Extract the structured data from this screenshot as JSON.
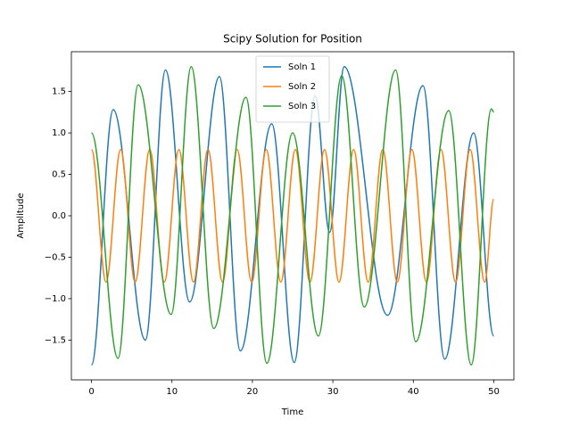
{
  "chart_data": {
    "type": "line",
    "title": "Scipy Solution for Position",
    "x_label": "Time",
    "y_label": "Amplitude",
    "xlim": [
      -2.5,
      52.5
    ],
    "ylim": [
      -1.98,
      1.98
    ],
    "xticks": [
      0,
      10,
      20,
      30,
      40,
      50
    ],
    "yticks": [
      {
        "value": -1.5,
        "label": "−1.5"
      },
      {
        "value": -1.0,
        "label": "−1.0"
      },
      {
        "value": -0.5,
        "label": "−0.5"
      },
      {
        "value": 0,
        "label": "0.0"
      },
      0.5,
      {
        "value": 1.0,
        "label": "1.0"
      },
      1.5
    ],
    "legend": "upper center",
    "series": [
      {
        "name": "Soln 1",
        "color": "#1f77b4",
        "x": [
          0,
          2.7,
          6.7,
          9.2,
          12.2,
          15.9,
          18.5,
          22.4,
          25.2,
          27.8,
          29.6,
          31.4,
          36.8,
          41.2,
          43.9,
          47.5,
          50
        ],
        "values": [
          -1.8,
          1.28,
          -1.5,
          1.76,
          -1.04,
          1.68,
          -1.63,
          1.11,
          -1.77,
          1.45,
          -0.2,
          1.8,
          -1.2,
          1.57,
          -1.73,
          1.0,
          -1.45
        ]
      },
      {
        "name": "Soln 2",
        "color": "#ff7f0e",
        "x": [
          0,
          1.81,
          3.62,
          5.43,
          7.24,
          9.05,
          10.86,
          12.67,
          14.48,
          16.29,
          18.1,
          19.91,
          21.72,
          23.53,
          25.34,
          27.15,
          28.96,
          30.77,
          32.58,
          34.39,
          36.2,
          38.01,
          39.82,
          41.63,
          43.44,
          45.25,
          47.06,
          48.87,
          50
        ],
        "values": [
          0.8,
          -0.8,
          0.8,
          -0.8,
          0.8,
          -0.8,
          0.8,
          -0.8,
          0.8,
          -0.8,
          0.8,
          -0.8,
          0.8,
          -0.8,
          0.8,
          -0.8,
          0.8,
          -0.8,
          0.8,
          -0.8,
          0.8,
          -0.8,
          0.8,
          -0.8,
          0.8,
          -0.8,
          0.8,
          -0.8,
          0.2
        ]
      },
      {
        "name": "Soln 3",
        "color": "#2ca02c",
        "x": [
          0,
          3.3,
          5.8,
          9.9,
          12.4,
          15.2,
          19.2,
          21.8,
          25.0,
          28.2,
          31.1,
          33.9,
          37.8,
          40.3,
          44.4,
          47.2,
          49.7,
          50
        ],
        "values": [
          1.0,
          -1.72,
          1.58,
          -1.19,
          1.8,
          -1.36,
          1.43,
          -1.78,
          1.0,
          -1.45,
          1.69,
          -1.1,
          1.76,
          -1.52,
          1.27,
          -1.8,
          1.29,
          1.25
        ]
      }
    ]
  }
}
